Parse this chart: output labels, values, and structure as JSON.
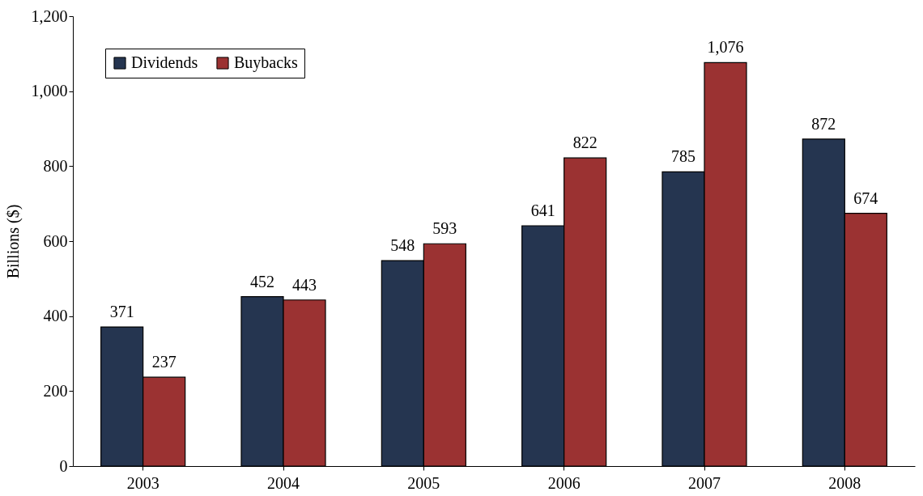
{
  "chart_data": {
    "type": "bar",
    "ylabel": "Billions ($)",
    "categories": [
      "2003",
      "2004",
      "2005",
      "2006",
      "2007",
      "2008"
    ],
    "series": [
      {
        "name": "Dividends",
        "color": "#253550",
        "values": [
          371,
          452,
          548,
          641,
          785,
          872
        ],
        "value_labels": [
          "371",
          "452",
          "548",
          "641",
          "785",
          "872"
        ]
      },
      {
        "name": "Buybacks",
        "color": "#9b3232",
        "values": [
          237,
          443,
          593,
          822,
          1076,
          674
        ],
        "value_labels": [
          "237",
          "443",
          "593",
          "822",
          "1,076",
          "674"
        ]
      }
    ],
    "ylim": [
      0,
      1200
    ],
    "yticks": [
      0,
      200,
      400,
      600,
      800,
      {
        "value": 1000,
        "label": "1,000"
      },
      {
        "value": 1200,
        "label": "1,200"
      }
    ],
    "legend": "top left"
  }
}
